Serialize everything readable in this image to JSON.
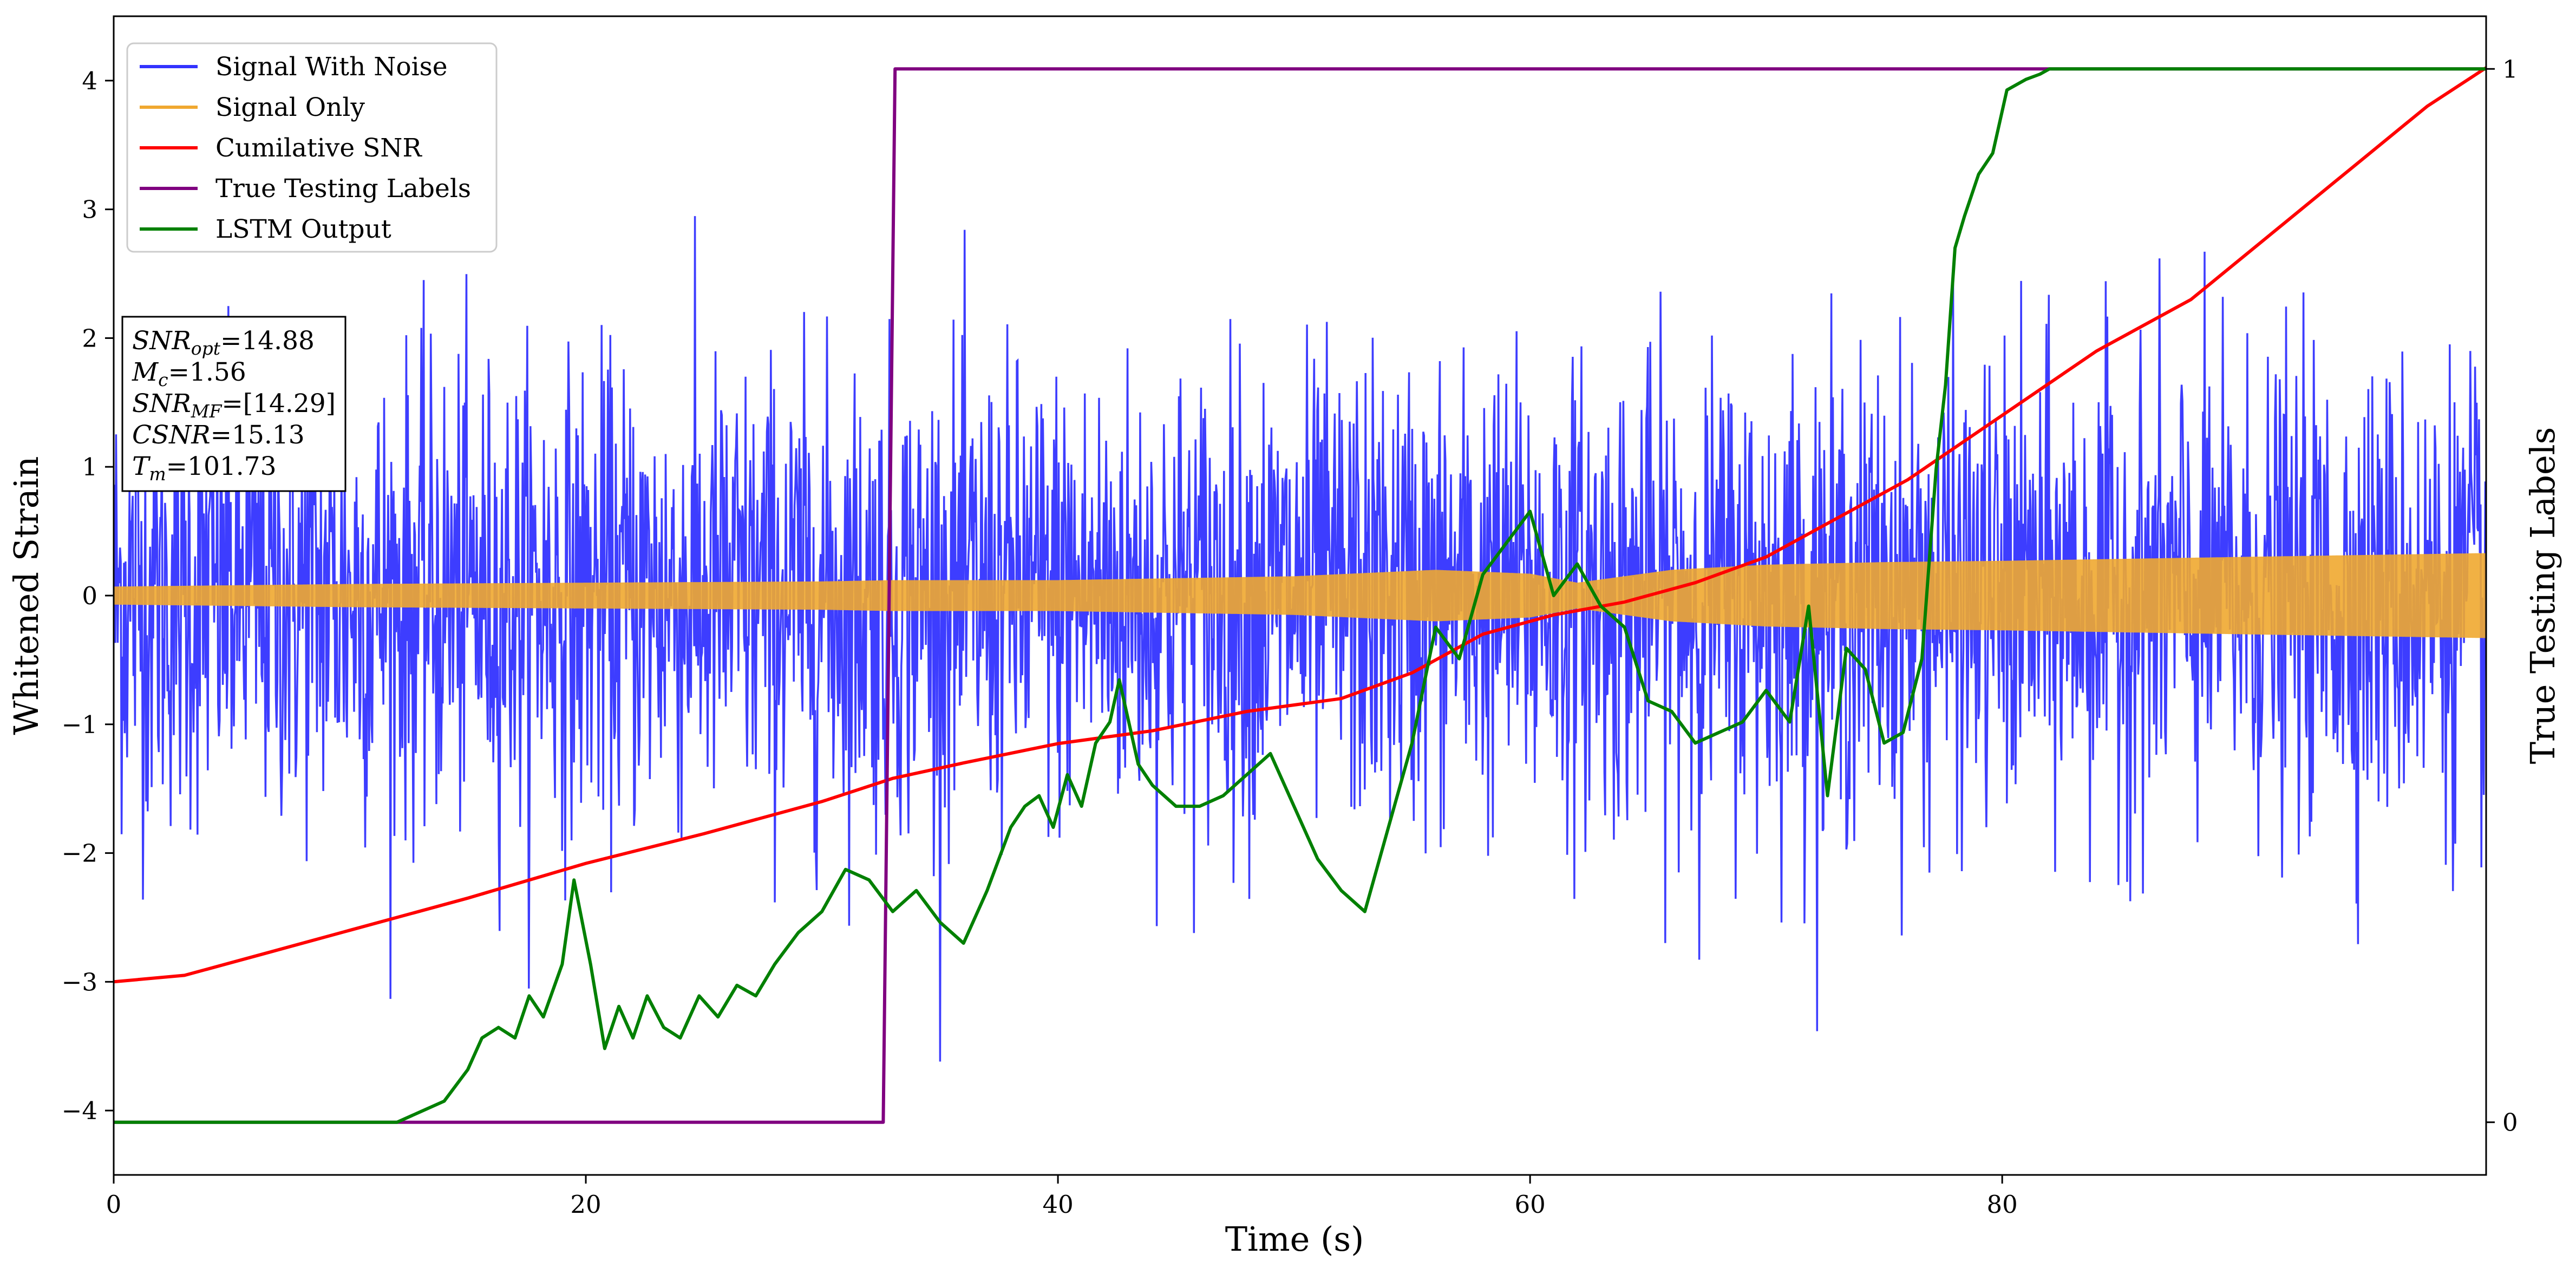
{
  "chart_data": {
    "type": "line",
    "xlabel": "Time (s)",
    "ylabel": "Whitened Strain",
    "y2label": "True Testing Labels",
    "xlim": [
      0,
      100.5
    ],
    "ylim": [
      -4.5,
      4.5
    ],
    "y2lim": [
      -0.05,
      1.05
    ],
    "xticks": [
      0,
      20,
      40,
      60,
      80
    ],
    "yticks": [
      -4,
      -3,
      -2,
      -1,
      0,
      1,
      2,
      3,
      4
    ],
    "y2ticks": [
      0,
      1
    ],
    "legend_position": "upper left",
    "series": [
      {
        "name": "Signal With Noise",
        "color": "#3333ff",
        "axis": "left",
        "kind": "gaussian noise, std approx 0.9, range approx -4.0 to 4.1",
        "x_range": [
          0,
          100.5
        ]
      },
      {
        "name": "Signal Only",
        "color": "#f0a830",
        "axis": "left",
        "kind": "oscillating chirp",
        "envelope_x": [
          0,
          10,
          20,
          30,
          33,
          40,
          50,
          56,
          60,
          62,
          66,
          70,
          75,
          80,
          90,
          100.5
        ],
        "envelope": [
          0.07,
          0.09,
          0.1,
          0.11,
          0.12,
          0.12,
          0.15,
          0.2,
          0.17,
          0.1,
          0.2,
          0.24,
          0.26,
          0.27,
          0.3,
          0.33
        ]
      },
      {
        "name": "Cumilative SNR",
        "color": "#ff0000",
        "axis": "left",
        "x": [
          0,
          3,
          6,
          10,
          15,
          20,
          25,
          30,
          33,
          36,
          40,
          44,
          48,
          52,
          55,
          58,
          61,
          64,
          67,
          70,
          73,
          76,
          80,
          84,
          88,
          92,
          95,
          98,
          100.5
        ],
        "y": [
          -3.0,
          -2.95,
          -2.8,
          -2.6,
          -2.35,
          -2.08,
          -1.85,
          -1.6,
          -1.42,
          -1.3,
          -1.15,
          -1.05,
          -0.9,
          -0.8,
          -0.6,
          -0.3,
          -0.15,
          -0.05,
          0.1,
          0.3,
          0.6,
          0.9,
          1.4,
          1.9,
          2.3,
          2.9,
          3.35,
          3.8,
          4.1
        ]
      },
      {
        "name": "True Testing Labels",
        "color": "#800080",
        "axis": "right",
        "x": [
          0,
          32.6,
          33.1,
          100.5
        ],
        "y": [
          0,
          0,
          1,
          1
        ]
      },
      {
        "name": "LSTM Output",
        "color": "#008000",
        "axis": "right",
        "x": [
          0,
          12,
          13,
          14,
          15,
          15.6,
          16.3,
          17,
          17.6,
          18.2,
          19.0,
          19.5,
          20.2,
          20.8,
          21.4,
          22.0,
          22.6,
          23.3,
          24.0,
          24.8,
          25.6,
          26.4,
          27.2,
          28.0,
          29.0,
          30.0,
          31.0,
          32.0,
          33.0,
          34.0,
          35.0,
          36.0,
          37.0,
          38.0,
          38.6,
          39.2,
          39.8,
          40.4,
          41.0,
          41.6,
          42.2,
          42.6,
          43.4,
          44.0,
          45.0,
          46.0,
          47.0,
          48.0,
          49.0,
          50.0,
          51.0,
          52.0,
          53.0,
          54.0,
          55.0,
          56.0,
          57.0,
          58.0,
          59.0,
          60.0,
          61.0,
          62.0,
          63.0,
          64.0,
          65.0,
          66.0,
          67.0,
          68.0,
          69.0,
          70.0,
          71.0,
          71.8,
          72.6,
          73.4,
          74.2,
          75.0,
          75.8,
          76.6,
          77.2,
          77.6,
          78.0,
          78.4,
          79.0,
          79.6,
          80.2,
          81.0,
          81.6,
          82.0,
          82.6,
          83.5,
          86.0,
          90.0,
          100.5
        ],
        "y": [
          0,
          0,
          0.01,
          0.02,
          0.05,
          0.08,
          0.09,
          0.08,
          0.12,
          0.1,
          0.15,
          0.23,
          0.15,
          0.07,
          0.11,
          0.08,
          0.12,
          0.09,
          0.08,
          0.12,
          0.1,
          0.13,
          0.12,
          0.15,
          0.18,
          0.2,
          0.24,
          0.23,
          0.2,
          0.22,
          0.19,
          0.17,
          0.22,
          0.28,
          0.3,
          0.31,
          0.28,
          0.33,
          0.3,
          0.36,
          0.38,
          0.42,
          0.34,
          0.32,
          0.3,
          0.3,
          0.31,
          0.33,
          0.35,
          0.3,
          0.25,
          0.22,
          0.2,
          0.28,
          0.36,
          0.47,
          0.44,
          0.52,
          0.55,
          0.58,
          0.5,
          0.53,
          0.49,
          0.47,
          0.4,
          0.39,
          0.36,
          0.37,
          0.38,
          0.41,
          0.38,
          0.49,
          0.31,
          0.45,
          0.43,
          0.36,
          0.37,
          0.44,
          0.62,
          0.7,
          0.83,
          0.86,
          0.9,
          0.92,
          0.98,
          0.99,
          0.995,
          1.0,
          1.0,
          1.0,
          1.0,
          1.0,
          1.0
        ]
      }
    ],
    "annotation": {
      "lines": [
        {
          "base": "SNR",
          "sub": "opt",
          "value": "=14.88"
        },
        {
          "base": "M",
          "sub": "c",
          "value": "=1.56"
        },
        {
          "base": "SNR",
          "sub": "MF",
          "value": "=[14.29]"
        },
        {
          "base": "CSNR",
          "sub": "",
          "value": "=15.13"
        },
        {
          "base": "T",
          "sub": "m",
          "value": "=101.73"
        }
      ]
    }
  }
}
